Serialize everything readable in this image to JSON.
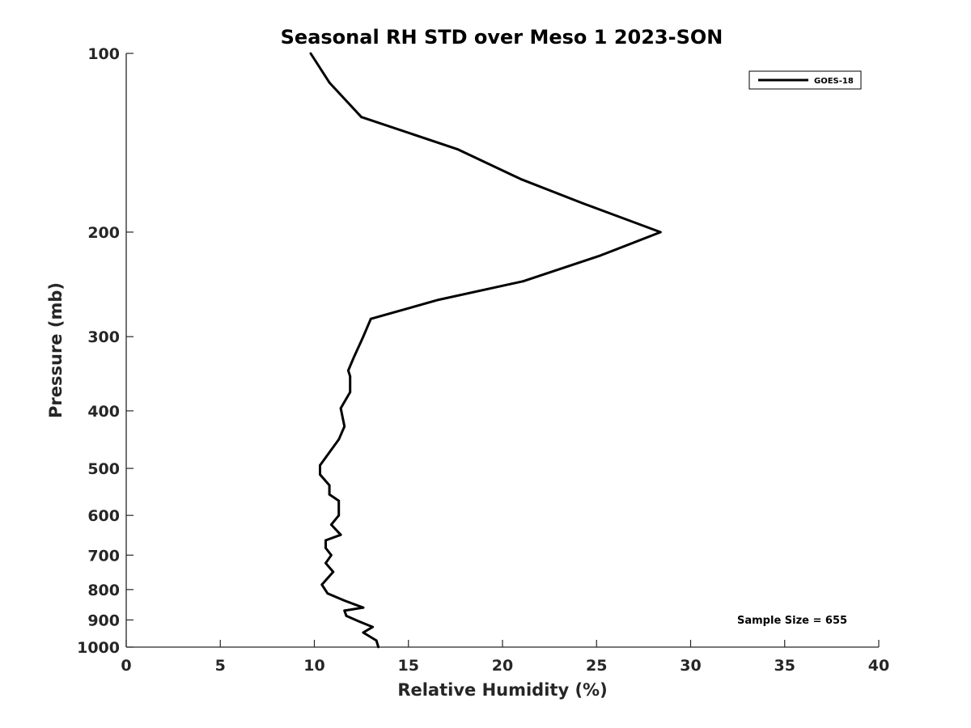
{
  "chart_data": {
    "type": "line",
    "title": "Seasonal RH STD over Meso 1  2023-SON",
    "xlabel": "Relative Humidity (%)",
    "ylabel": "Pressure (mb)",
    "xlim": [
      0,
      40
    ],
    "ylim": [
      100,
      1000
    ],
    "y_scale": "log",
    "y_reversed": true,
    "x_ticks": [
      0,
      5,
      10,
      15,
      20,
      25,
      30,
      35,
      40
    ],
    "y_ticks": [
      100,
      200,
      300,
      400,
      500,
      600,
      700,
      800,
      900,
      1000
    ],
    "grid": false,
    "legend_position": "top-right",
    "line_color": "#000000",
    "series": [
      {
        "name": "GOES-18",
        "x": [
          9.8,
          10.8,
          12.5,
          17.6,
          21.0,
          24.3,
          28.4,
          25.2,
          21.1,
          16.6,
          13.0,
          12.6,
          12.1,
          11.8,
          11.9,
          11.9,
          11.4,
          11.6,
          11.3,
          10.3,
          10.3,
          10.8,
          10.8,
          11.3,
          11.3,
          10.9,
          11.4,
          10.6,
          10.6,
          10.9,
          10.6,
          11.0,
          10.4,
          10.7,
          11.6,
          12.6,
          11.6,
          11.7,
          12.4,
          13.1,
          12.6,
          13.3,
          13.4
        ],
        "y": [
          100,
          112,
          128,
          145,
          163,
          179,
          200,
          219,
          242,
          260,
          280,
          300,
          325,
          342,
          350,
          372,
          396,
          425,
          447,
          494,
          512,
          534,
          553,
          567,
          600,
          622,
          647,
          661,
          681,
          700,
          722,
          747,
          785,
          812,
          835,
          858,
          868,
          886,
          906,
          925,
          945,
          975,
          1000
        ]
      }
    ],
    "annotations": [
      "Sample Size = 655"
    ]
  }
}
